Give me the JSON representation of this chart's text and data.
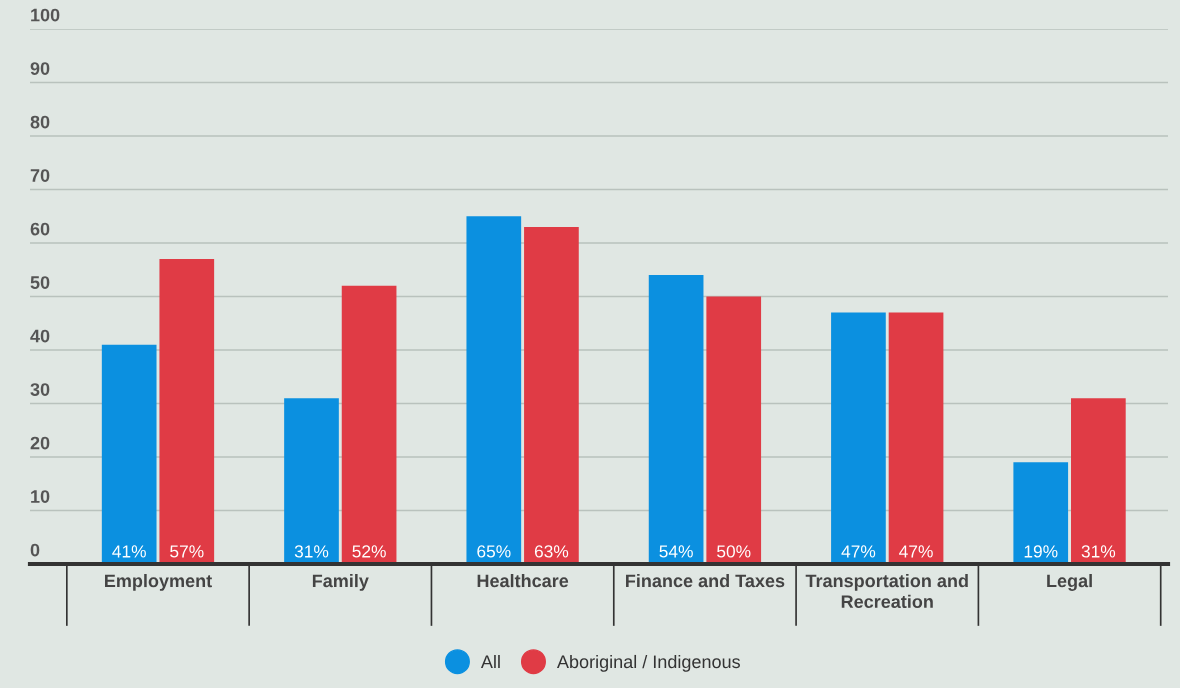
{
  "chart_data": {
    "type": "bar",
    "categories": [
      "Employment",
      "Family",
      "Healthcare",
      "Finance and Taxes",
      "Transportation and\nRecreation",
      "Legal"
    ],
    "series": [
      {
        "name": "All",
        "color": "#0b90e0",
        "values": [
          41,
          31,
          65,
          54,
          47,
          19
        ],
        "value_labels": [
          "41%",
          "31%",
          "65%",
          "54%",
          "47%",
          "19%"
        ]
      },
      {
        "name": "Aboriginal / Indigenous",
        "color": "#e03b45",
        "values": [
          57,
          52,
          63,
          50,
          47,
          31
        ],
        "value_labels": [
          "57%",
          "52%",
          "63%",
          "50%",
          "47%",
          "31%"
        ]
      }
    ],
    "ylim": [
      0,
      100
    ],
    "yticks": [
      0,
      10,
      20,
      30,
      40,
      50,
      60,
      70,
      80,
      90,
      100
    ],
    "grid": "y",
    "legend": "bottom"
  }
}
